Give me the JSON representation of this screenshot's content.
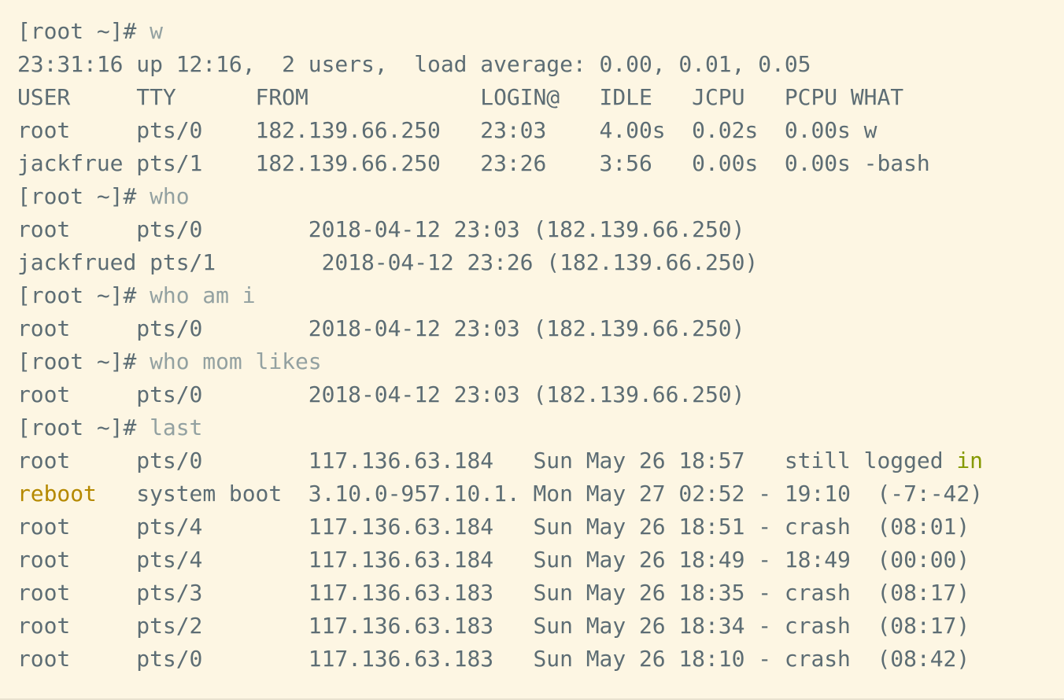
{
  "colors": {
    "background": "#fdf6e3",
    "text": "#5d6d74",
    "command": "#93a1a1",
    "yellow": "#b58900",
    "green": "#859900"
  },
  "lines": [
    [
      {
        "t": "[root ~]# "
      },
      {
        "t": "w",
        "c": "cmd"
      }
    ],
    [
      {
        "t": "23:31:16 up 12:16,  2 users,  load average: 0.00, 0.01, 0.05"
      }
    ],
    [
      {
        "t": "USER     TTY      FROM             LOGIN@   IDLE   JCPU   PCPU WHAT"
      }
    ],
    [
      {
        "t": "root     pts/0    182.139.66.250   23:03    4.00s  0.02s  0.00s w"
      }
    ],
    [
      {
        "t": "jackfrue pts/1    182.139.66.250   23:26    3:56   0.00s  0.00s -bash"
      }
    ],
    [
      {
        "t": "[root ~]# "
      },
      {
        "t": "who",
        "c": "cmd"
      }
    ],
    [
      {
        "t": "root     pts/0        2018-04-12 23:03 (182.139.66.250)"
      }
    ],
    [
      {
        "t": "jackfrued pts/1        2018-04-12 23:26 (182.139.66.250)"
      }
    ],
    [
      {
        "t": "[root ~]# "
      },
      {
        "t": "who am i",
        "c": "cmd"
      }
    ],
    [
      {
        "t": "root     pts/0        2018-04-12 23:03 (182.139.66.250)"
      }
    ],
    [
      {
        "t": "[root ~]# "
      },
      {
        "t": "who mom likes",
        "c": "cmd"
      }
    ],
    [
      {
        "t": "root     pts/0        2018-04-12 23:03 (182.139.66.250)"
      }
    ],
    [
      {
        "t": "[root ~]# "
      },
      {
        "t": "last",
        "c": "cmd"
      }
    ],
    [
      {
        "t": "root     pts/0        117.136.63.184   Sun May 26 18:57   still logged "
      },
      {
        "t": "in",
        "c": "green"
      }
    ],
    [
      {
        "t": "reboot",
        "c": "yellow"
      },
      {
        "t": "   system boot  3.10.0-957.10.1. Mon May 27 02:52 - 19:10  (-7:-42)"
      }
    ],
    [
      {
        "t": "root     pts/4        117.136.63.184   Sun May 26 18:51 - crash  (08:01)"
      }
    ],
    [
      {
        "t": "root     pts/4        117.136.63.184   Sun May 26 18:49 - 18:49  (00:00)"
      }
    ],
    [
      {
        "t": "root     pts/3        117.136.63.183   Sun May 26 18:35 - crash  (08:17)"
      }
    ],
    [
      {
        "t": "root     pts/2        117.136.63.183   Sun May 26 18:34 - crash  (08:17)"
      }
    ],
    [
      {
        "t": "root     pts/0        117.136.63.183   Sun May 26 18:10 - crash  (08:42)"
      }
    ]
  ]
}
